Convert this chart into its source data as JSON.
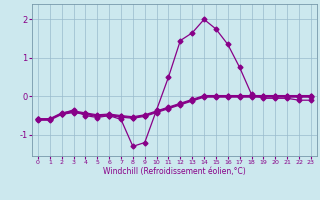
{
  "x": [
    0,
    1,
    2,
    3,
    4,
    5,
    6,
    7,
    8,
    9,
    10,
    11,
    12,
    13,
    14,
    15,
    16,
    17,
    18,
    19,
    20,
    21,
    22,
    23
  ],
  "line_main": [
    -0.6,
    -0.6,
    -0.45,
    -0.35,
    -0.5,
    -0.55,
    -0.5,
    -0.6,
    -1.3,
    -1.2,
    -0.35,
    0.5,
    1.45,
    1.65,
    2.0,
    1.75,
    1.35,
    0.75,
    0.05,
    -0.05,
    -0.05,
    -0.05,
    -0.1,
    -0.1
  ],
  "line_flat1": [
    -0.6,
    -0.6,
    -0.45,
    -0.4,
    -0.45,
    -0.5,
    -0.48,
    -0.52,
    -0.55,
    -0.5,
    -0.4,
    -0.3,
    -0.2,
    -0.1,
    0.0,
    0.0,
    0.0,
    0.0,
    0.0,
    0.0,
    0.0,
    0.0,
    0.0,
    0.0
  ],
  "line_flat2": [
    -0.62,
    -0.62,
    -0.47,
    -0.42,
    -0.47,
    -0.52,
    -0.5,
    -0.54,
    -0.57,
    -0.52,
    -0.42,
    -0.32,
    -0.22,
    -0.12,
    -0.02,
    -0.02,
    -0.02,
    -0.02,
    -0.02,
    -0.02,
    -0.02,
    -0.02,
    -0.02,
    -0.02
  ],
  "line_flat3": [
    -0.58,
    -0.58,
    -0.43,
    -0.38,
    -0.43,
    -0.48,
    -0.46,
    -0.5,
    -0.53,
    -0.48,
    -0.38,
    -0.28,
    -0.18,
    -0.08,
    0.02,
    0.02,
    0.02,
    0.02,
    0.02,
    0.02,
    0.02,
    0.02,
    0.02,
    0.02
  ],
  "line_color": "#880088",
  "bg_color": "#cce8ee",
  "grid_color": "#99bbcc",
  "xlabel": "Windchill (Refroidissement éolien,°C)",
  "yticks": [
    -1,
    0,
    1,
    2
  ],
  "xtick_labels": [
    "0",
    "1",
    "2",
    "3",
    "4",
    "5",
    "6",
    "7",
    "8",
    "9",
    "10",
    "11",
    "12",
    "13",
    "14",
    "15",
    "16",
    "17",
    "18",
    "19",
    "20",
    "21",
    "22",
    "23"
  ],
  "ylim": [
    -1.55,
    2.4
  ],
  "xlim": [
    -0.5,
    23.5
  ]
}
